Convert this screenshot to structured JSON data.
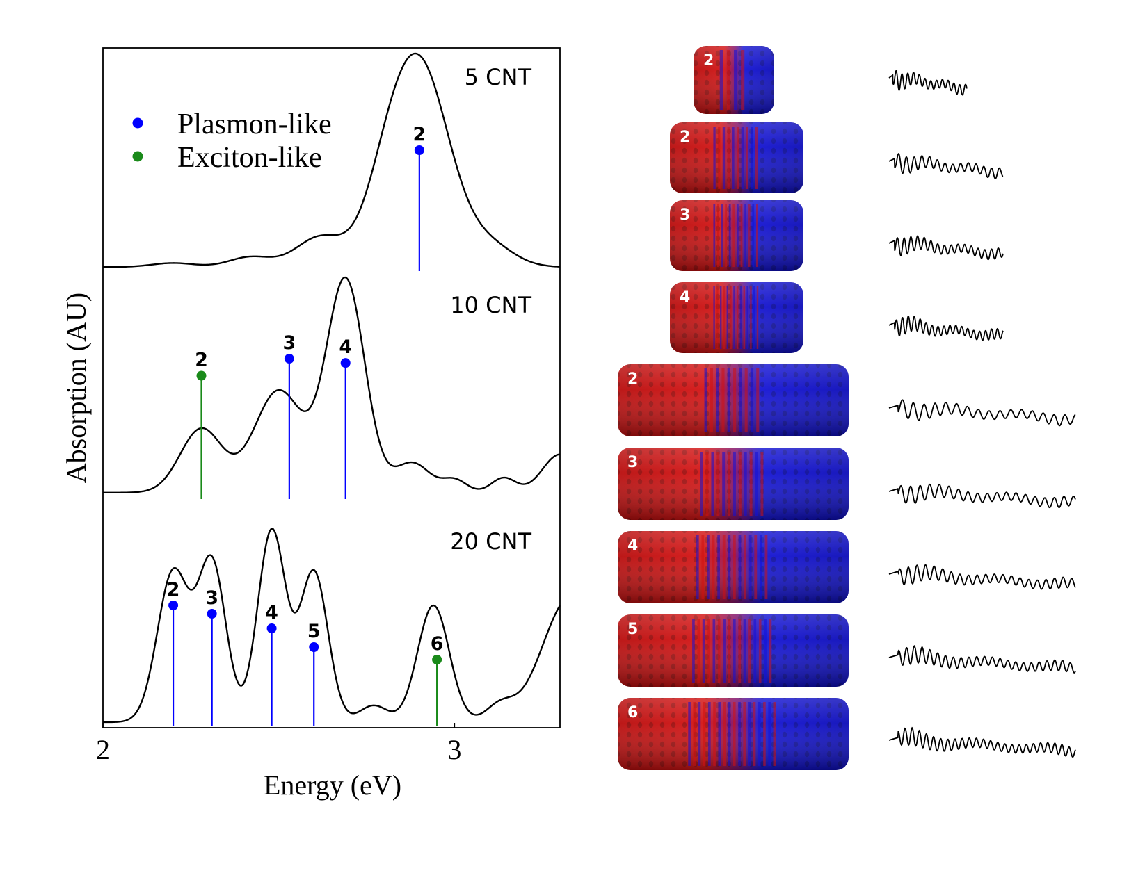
{
  "chart_data": {
    "type": "line",
    "xlabel": "Energy (eV)",
    "ylabel": "Absorption (AU)",
    "xlim": [
      2.0,
      3.3
    ],
    "xticks": [
      {
        "value": 2,
        "label": "2"
      },
      {
        "value": 3,
        "label": "3"
      }
    ],
    "legend": {
      "placement": "top-left",
      "entries": [
        {
          "label": "Plasmon-like",
          "color": "#0000ff"
        },
        {
          "label": "Exciton-like",
          "color": "#1a8a1a"
        }
      ]
    },
    "panels": [
      {
        "name": "5 CNT",
        "label": "5 CNT",
        "ylim": [
          0,
          1.1
        ],
        "curve": {
          "baseline": 0.02,
          "peaks": [
            {
              "e": 2.2,
              "a": 0.02,
              "w": 0.06
            },
            {
              "e": 2.42,
              "a": 0.05,
              "w": 0.06
            },
            {
              "e": 2.62,
              "a": 0.15,
              "w": 0.07
            },
            {
              "e": 2.8,
              "a": 0.2,
              "w": 0.06
            },
            {
              "e": 2.9,
              "a": 1.0,
              "w": 0.085
            },
            {
              "e": 3.1,
              "a": 0.1,
              "w": 0.07
            }
          ]
        },
        "stems": [
          {
            "label": "2",
            "energy": 2.9,
            "height": 0.6,
            "kind": "plasmon"
          }
        ]
      },
      {
        "name": "10 CNT",
        "label": "10 CNT",
        "ylim": [
          0,
          1.1
        ],
        "curve": {
          "baseline": 0.03,
          "peaks": [
            {
              "e": 2.28,
              "a": 0.3,
              "w": 0.06
            },
            {
              "e": 2.5,
              "a": 0.48,
              "w": 0.07
            },
            {
              "e": 2.69,
              "a": 1.0,
              "w": 0.055
            },
            {
              "e": 2.88,
              "a": 0.14,
              "w": 0.05
            },
            {
              "e": 3.0,
              "a": 0.06,
              "w": 0.035
            },
            {
              "e": 3.14,
              "a": 0.07,
              "w": 0.035
            },
            {
              "e": 3.3,
              "a": 0.18,
              "w": 0.05
            }
          ]
        },
        "stems": [
          {
            "label": "2",
            "energy": 2.28,
            "height": 0.58,
            "kind": "exciton"
          },
          {
            "label": "3",
            "energy": 2.53,
            "height": 0.66,
            "kind": "plasmon"
          },
          {
            "label": "4",
            "energy": 2.69,
            "height": 0.64,
            "kind": "plasmon"
          }
        ]
      },
      {
        "name": "20 CNT",
        "label": "20 CNT",
        "ylim": [
          0,
          1.1
        ],
        "curve": {
          "baseline": 0.02,
          "peaks": [
            {
              "e": 2.2,
              "a": 0.72,
              "w": 0.045
            },
            {
              "e": 2.31,
              "a": 0.76,
              "w": 0.04
            },
            {
              "e": 2.48,
              "a": 0.92,
              "w": 0.04
            },
            {
              "e": 2.6,
              "a": 0.72,
              "w": 0.04
            },
            {
              "e": 2.77,
              "a": 0.08,
              "w": 0.04
            },
            {
              "e": 2.94,
              "a": 0.56,
              "w": 0.045
            },
            {
              "e": 3.13,
              "a": 0.08,
              "w": 0.04
            },
            {
              "e": 3.33,
              "a": 0.6,
              "w": 0.08
            }
          ]
        },
        "stems": [
          {
            "label": "2",
            "energy": 2.2,
            "height": 0.58,
            "kind": "plasmon"
          },
          {
            "label": "3",
            "energy": 2.31,
            "height": 0.54,
            "kind": "plasmon"
          },
          {
            "label": "4",
            "energy": 2.48,
            "height": 0.47,
            "kind": "plasmon"
          },
          {
            "label": "5",
            "energy": 2.6,
            "height": 0.38,
            "kind": "plasmon"
          },
          {
            "label": "6",
            "energy": 2.95,
            "height": 0.32,
            "kind": "exciton"
          }
        ]
      }
    ]
  },
  "mode_rows": [
    {
      "label": "2",
      "size": "small"
    },
    {
      "label": "2",
      "size": "medium"
    },
    {
      "label": "3",
      "size": "medium"
    },
    {
      "label": "4",
      "size": "medium"
    },
    {
      "label": "2",
      "size": "large"
    },
    {
      "label": "3",
      "size": "large"
    },
    {
      "label": "4",
      "size": "large"
    },
    {
      "label": "5",
      "size": "large"
    },
    {
      "label": "6",
      "size": "large"
    }
  ],
  "colors": {
    "axis": "#000000",
    "curve": "#000000",
    "plasmon": "#0000ff",
    "exciton": "#1a8a1a",
    "tube_red": "#d01010",
    "tube_blue": "#1010d8"
  }
}
